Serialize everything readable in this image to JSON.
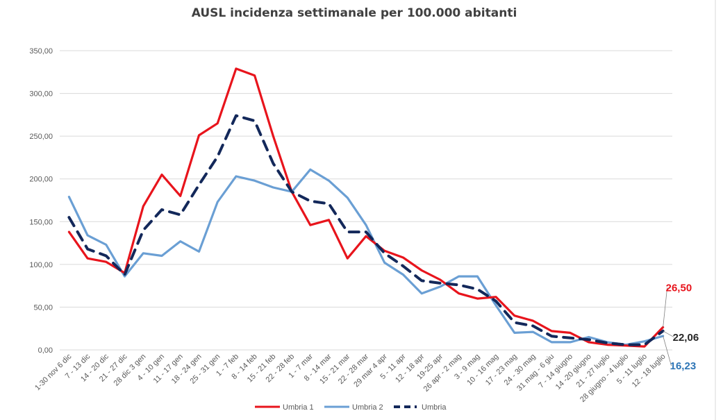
{
  "chart_data": {
    "type": "line",
    "title": "AUSL incidenza settimanale per 100.000 abitanti",
    "xlabel": "",
    "ylabel": "",
    "ylim": [
      0,
      350
    ],
    "y_ticks": [
      "0,00",
      "50,00",
      "100,00",
      "150,00",
      "200,00",
      "250,00",
      "300,00",
      "350,00"
    ],
    "grid": true,
    "legend_position": "bottom",
    "categories": [
      "1-30 nov 6 dic",
      "7 - 13 dic",
      "14 - 20 dic",
      "21 - 27 dic",
      "28 dic 3 gen",
      "4 - 10 gen",
      "11 - 17 gen",
      "18 - 24 gen",
      "25 - 31 gen",
      "1 - 7 feb",
      "8 - 14 feb",
      "15 - 21 feb",
      "22 - 28 feb",
      "1 - 7 mar",
      "8 - 14 mar",
      "15 - 21 mar",
      "22 - 28 mar",
      "29 mar 4 apr",
      "5 - 11 apr",
      "12 - 18 apr",
      "19-25 apr",
      "26 apr - 2 mag",
      "3 - 9 mag",
      "10 - 16 mag",
      "17 - 23 mag",
      "24 - 30 mag",
      "31 mag - 6 giu",
      "7 - 14 giugno",
      "14 -20 giugno",
      "21 - 27 luglio",
      "28 giugno - 4 luglio",
      "5 - 11 luglio",
      "12 - 18 luglio"
    ],
    "series": [
      {
        "name": "Umbria 1",
        "color": "#e8141c",
        "style": "solid",
        "values": [
          138,
          107,
          103,
          90,
          168,
          205,
          180,
          251,
          265,
          329,
          321,
          250,
          185,
          146,
          152,
          107,
          133,
          116,
          108,
          93,
          82,
          66,
          60,
          62,
          40,
          34,
          22,
          20,
          9,
          6,
          5,
          4,
          26.5
        ],
        "end_label": "26,50"
      },
      {
        "name": "Umbria 2",
        "color": "#6a9fd4",
        "style": "solid",
        "values": [
          179,
          134,
          123,
          86,
          113,
          110,
          127,
          115,
          173,
          203,
          198,
          190,
          185,
          211,
          198,
          178,
          146,
          102,
          88,
          66,
          74,
          86,
          86,
          52,
          20,
          21,
          9,
          9,
          15,
          9,
          6,
          10,
          16.23
        ],
        "end_label": "16,23"
      },
      {
        "name": "Umbria",
        "color": "#13285a",
        "style": "dashed",
        "values": [
          155,
          118,
          110,
          88,
          140,
          164,
          158,
          193,
          226,
          274,
          268,
          218,
          185,
          174,
          171,
          138,
          138,
          113,
          98,
          81,
          78,
          76,
          71,
          57,
          32,
          28,
          16,
          14,
          12,
          8,
          6,
          6,
          22.06
        ],
        "end_label": "22,06"
      }
    ]
  }
}
